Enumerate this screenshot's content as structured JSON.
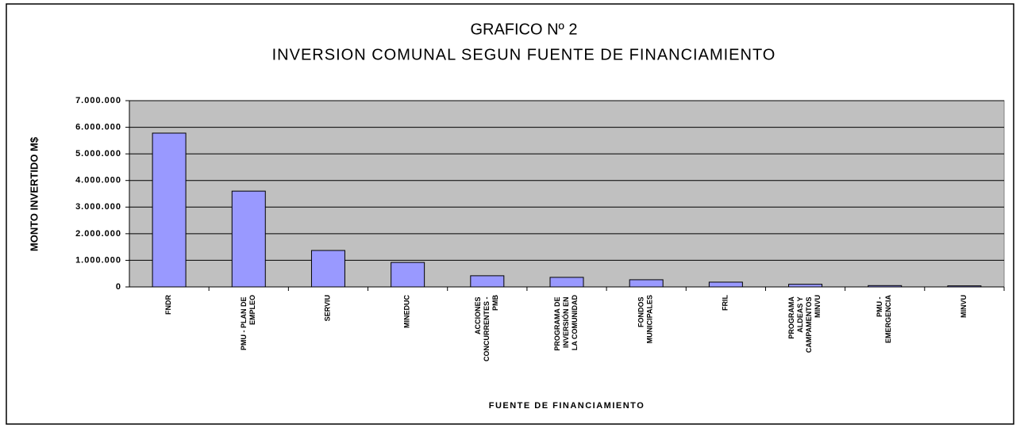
{
  "chart_data": {
    "type": "bar",
    "title": "GRAFICO Nº 2",
    "subtitle": "INVERSION COMUNAL SEGUN FUENTE DE FINANCIAMIENTO",
    "x_label": "FUENTE DE FINANCIAMIENTO",
    "y_label": "MONTO INVERTIDO M$",
    "categories": [
      "FNDR",
      "PMU - PLAN DE EMPLEO",
      "SERVIU",
      "MINEDUC",
      "ACCIONES CONCURRENTES - PMB",
      "PROGRAMA DE INVERSIÓN EN LA COMUNIDAD",
      "FONDOS MUNICIPALES",
      "FRIL",
      "PROGRAMA ALDEAS Y CAMPAMENTOS MINVU",
      "PMU - EMERGENCIA",
      "MINVU"
    ],
    "values": [
      5780000,
      3600000,
      1370000,
      920000,
      420000,
      360000,
      270000,
      180000,
      100000,
      50000,
      40000
    ],
    "color": "#9999ff",
    "ylim": [
      0,
      7000000
    ],
    "yticks": [
      0,
      {
        "value": 1000000,
        "label": "1.000.000"
      },
      {
        "value": 2000000,
        "label": "2.000.000"
      },
      {
        "value": 3000000,
        "label": "3.000.000"
      },
      {
        "value": 4000000,
        "label": "4.000.000"
      },
      {
        "value": 5000000,
        "label": "5.000.000"
      },
      {
        "value": 6000000,
        "label": "6.000.000"
      },
      {
        "value": 7000000,
        "label": "7.000.000"
      }
    ],
    "grid": true
  }
}
